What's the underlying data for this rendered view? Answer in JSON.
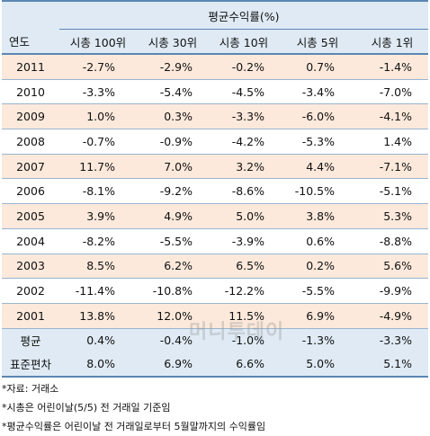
{
  "header": {
    "group_label": "평균수익률(%)",
    "year_label": "연도",
    "columns": [
      "시총 100위",
      "시총 30위",
      "시총 10위",
      "시총 5위",
      "시총 1위"
    ]
  },
  "rows": [
    {
      "year": "2011",
      "values": [
        "-2.7%",
        "-2.9%",
        "-0.2%",
        "0.7%",
        "-1.4%"
      ]
    },
    {
      "year": "2010",
      "values": [
        "-3.3%",
        "-5.4%",
        "-4.5%",
        "-3.4%",
        "-7.0%"
      ]
    },
    {
      "year": "2009",
      "values": [
        "1.0%",
        "0.3%",
        "-3.3%",
        "-6.0%",
        "-4.1%"
      ]
    },
    {
      "year": "2008",
      "values": [
        "-0.7%",
        "-0.9%",
        "-4.2%",
        "-5.3%",
        "1.4%"
      ]
    },
    {
      "year": "2007",
      "values": [
        "11.7%",
        "7.0%",
        "3.2%",
        "4.4%",
        "-7.1%"
      ]
    },
    {
      "year": "2006",
      "values": [
        "-8.1%",
        "-9.2%",
        "-8.6%",
        "-10.5%",
        "-5.1%"
      ]
    },
    {
      "year": "2005",
      "values": [
        "3.9%",
        "4.9%",
        "5.0%",
        "3.8%",
        "5.3%"
      ]
    },
    {
      "year": "2004",
      "values": [
        "-8.2%",
        "-5.5%",
        "-3.9%",
        "0.6%",
        "-8.8%"
      ]
    },
    {
      "year": "2003",
      "values": [
        "8.5%",
        "6.2%",
        "6.5%",
        "0.2%",
        "5.6%"
      ]
    },
    {
      "year": "2002",
      "values": [
        "-11.4%",
        "-10.8%",
        "-12.2%",
        "-5.5%",
        "-9.9%"
      ]
    },
    {
      "year": "2001",
      "values": [
        "13.8%",
        "12.0%",
        "11.5%",
        "6.9%",
        "-4.9%"
      ]
    }
  ],
  "summary": [
    {
      "label": "평균",
      "values": [
        "0.4%",
        "-0.4%",
        "-1.0%",
        "-1.3%",
        "-3.3%"
      ]
    },
    {
      "label": "표준편차",
      "values": [
        "8.0%",
        "6.9%",
        "6.6%",
        "5.0%",
        "5.1%"
      ]
    }
  ],
  "notes": [
    "*자료: 거래소",
    "*시총은 어린이날(5/5) 전 거래일 기준임",
    "*평균수익률은 어린이날 전 거래일로부터 5월말까지의 수익률임"
  ],
  "watermark": "머니투데이",
  "colors": {
    "header_bg": "#dfeaf4",
    "odd_row_bg": "#fce9db",
    "rule": "#5b86b3"
  }
}
